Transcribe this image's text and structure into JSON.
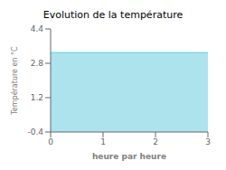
{
  "chart_data": {
    "type": "area",
    "title": "Evolution de la température",
    "x_label": "heure par heure",
    "y_label": "Température en °C",
    "x": [
      0,
      3
    ],
    "values": [
      3.3,
      3.3
    ],
    "color": "#5bc8dc",
    "xlim": [
      0,
      3
    ],
    "ylim": [
      -0.4,
      4.4
    ],
    "xticks": [
      0,
      1,
      2,
      3
    ],
    "yticks": [
      -0.4,
      1.2,
      2.8,
      4.4
    ]
  }
}
